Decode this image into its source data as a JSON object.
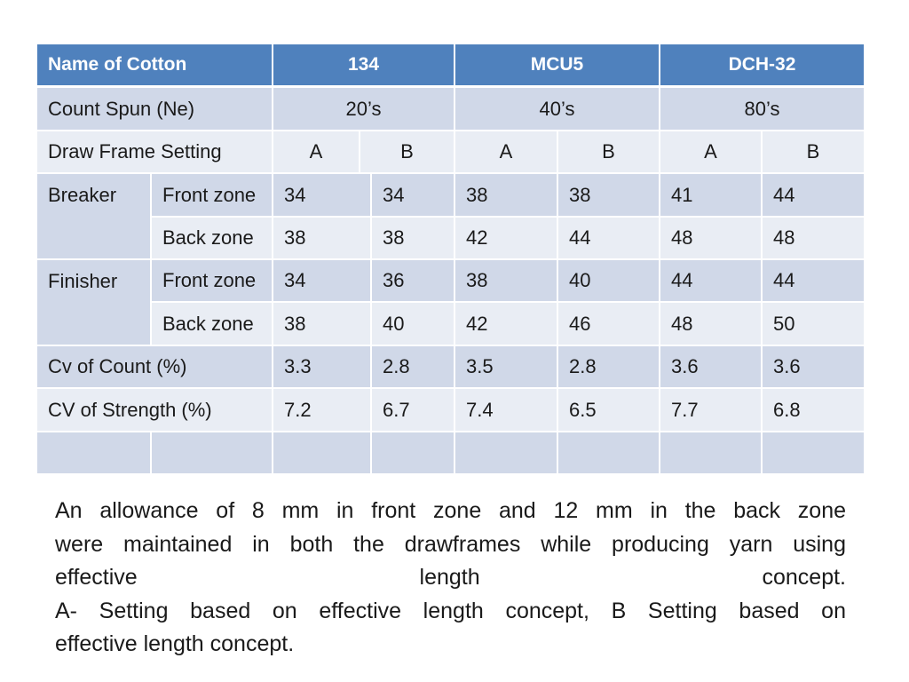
{
  "table": {
    "header": {
      "name_label": "Name of Cotton",
      "cottons": [
        "134",
        "MCU5",
        "DCH-32"
      ]
    },
    "count_spun": {
      "label": "Count Spun (Ne)",
      "values": [
        "20’s",
        "40’s",
        "80’s"
      ]
    },
    "draw_frame": {
      "label": "Draw Frame Setting",
      "settings": [
        "A",
        "B",
        "A",
        "B",
        "A",
        "B"
      ]
    },
    "breaker": {
      "label": "Breaker",
      "front": {
        "label": "Front zone",
        "values": [
          "34",
          "34",
          "38",
          "38",
          "41",
          "44"
        ]
      },
      "back": {
        "label": "Back zone",
        "values": [
          "38",
          "38",
          "42",
          "44",
          "48",
          "48"
        ]
      }
    },
    "finisher": {
      "label": "Finisher",
      "front": {
        "label": "Front zone",
        "values": [
          "34",
          "36",
          "38",
          "40",
          "44",
          "44"
        ]
      },
      "back": {
        "label": "Back zone",
        "values": [
          "38",
          "40",
          "42",
          "46",
          "48",
          "50"
        ]
      }
    },
    "cv_count": {
      "label": "Cv of Count (%)",
      "values": [
        "3.3",
        "2.8",
        "3.5",
        "2.8",
        "3.6",
        "3.6"
      ]
    },
    "cv_strength": {
      "label": "CV of Strength (%)",
      "values": [
        "7.2",
        "6.7",
        "7.4",
        "6.5",
        "7.7",
        "6.8"
      ]
    }
  },
  "note": {
    "line1": "An allowance of 8 mm in front zone and 12 mm  in the back zone",
    "line2": "were maintained in both the drawframes while producing yarn using",
    "line3": "effective length concept.",
    "line4": "A- Setting based on effective length concept, B Setting based on",
    "line5": "effective length concept."
  },
  "colors": {
    "header": "#4f81bd",
    "band_dark": "#d0d8e8",
    "band_light": "#e9edf4",
    "grid": "#ffffff"
  }
}
